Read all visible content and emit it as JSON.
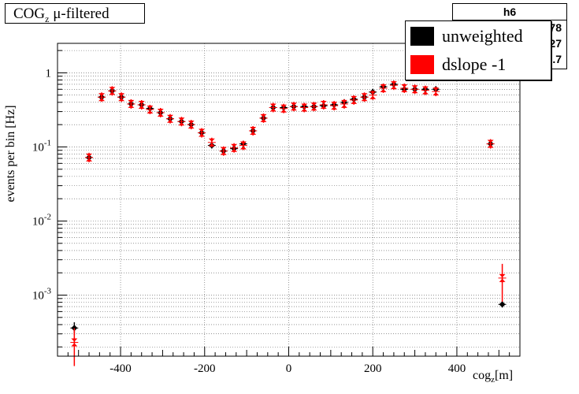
{
  "title": {
    "main": "COG",
    "sub": "z",
    "suffix": " μ-filtered"
  },
  "stats_box": {
    "title": "h6",
    "rows": [
      "78",
      "27",
      ".7"
    ]
  },
  "legend": [
    {
      "label": "unweighted",
      "color": "#000000"
    },
    {
      "label": "dslope -1",
      "color": "#ff0000"
    }
  ],
  "axes": {
    "ylabel": "events per bin [Hz]",
    "xlabel_main": "cog",
    "xlabel_sub": "z",
    "xlabel_suffix": "[m]"
  },
  "chart_data": {
    "type": "scatter",
    "title": "COGz μ-filtered",
    "xlabel": "cogz[m]",
    "ylabel": "events per bin [Hz]",
    "xlim": [
      -550,
      550
    ],
    "ylim": [
      0.00015,
      2.5
    ],
    "yscale": "log",
    "grid": true,
    "x_ticks": [
      -400,
      -200,
      0,
      200,
      400
    ],
    "y_ticks": [
      0.001,
      0.01,
      0.1,
      1
    ],
    "y_tick_labels": [
      {
        "base": "10",
        "exp": "-3"
      },
      {
        "base": "10",
        "exp": "-2"
      },
      {
        "base": "10",
        "exp": "-1"
      },
      {
        "base": "1",
        "exp": ""
      }
    ],
    "legend_position": "top-right",
    "series": [
      {
        "name": "unweighted",
        "color": "#000000",
        "x": [
          -510,
          -475,
          -445,
          -420,
          -398,
          -375,
          -350,
          -330,
          -305,
          -282,
          -255,
          -232,
          -207,
          -183,
          -155,
          -130,
          -108,
          -85,
          -60,
          -37,
          -12,
          12,
          37,
          60,
          83,
          108,
          132,
          155,
          180,
          200,
          225,
          250,
          275,
          300,
          325,
          350,
          480,
          508
        ],
        "y": [
          0.00036,
          0.072,
          0.47,
          0.57,
          0.47,
          0.38,
          0.37,
          0.33,
          0.29,
          0.24,
          0.22,
          0.2,
          0.155,
          0.105,
          0.088,
          0.095,
          0.11,
          0.165,
          0.245,
          0.34,
          0.34,
          0.35,
          0.35,
          0.35,
          0.36,
          0.37,
          0.4,
          0.44,
          0.47,
          0.55,
          0.65,
          0.7,
          0.6,
          0.6,
          0.6,
          0.6,
          0.11,
          0.00075
        ],
        "y_err": [
          7e-05,
          0.004,
          0.02,
          0.02,
          0.02,
          0.015,
          0.015,
          0.015,
          0.013,
          0.012,
          0.011,
          0.01,
          0.009,
          0.008,
          0.007,
          0.007,
          0.008,
          0.009,
          0.011,
          0.013,
          0.013,
          0.013,
          0.013,
          0.013,
          0.013,
          0.014,
          0.015,
          0.016,
          0.017,
          0.02,
          0.022,
          0.024,
          0.02,
          0.02,
          0.02,
          0.02,
          0.008,
          7e-05
        ]
      },
      {
        "name": "dslope -1",
        "color": "#ff0000",
        "x": [
          -510,
          -475,
          -445,
          -420,
          -398,
          -375,
          -350,
          -330,
          -305,
          -282,
          -255,
          -232,
          -207,
          -183,
          -155,
          -130,
          -108,
          -85,
          -60,
          -37,
          -12,
          12,
          37,
          60,
          83,
          108,
          132,
          155,
          180,
          200,
          225,
          250,
          275,
          300,
          325,
          350,
          480,
          508
        ],
        "y": [
          0.00023,
          0.072,
          0.47,
          0.57,
          0.47,
          0.38,
          0.37,
          0.32,
          0.29,
          0.24,
          0.22,
          0.2,
          0.155,
          0.115,
          0.088,
          0.097,
          0.105,
          0.165,
          0.245,
          0.34,
          0.33,
          0.35,
          0.34,
          0.35,
          0.37,
          0.36,
          0.38,
          0.43,
          0.47,
          0.5,
          0.62,
          0.68,
          0.62,
          0.6,
          0.58,
          0.56,
          0.11,
          0.0017
        ]
      }
    ]
  }
}
